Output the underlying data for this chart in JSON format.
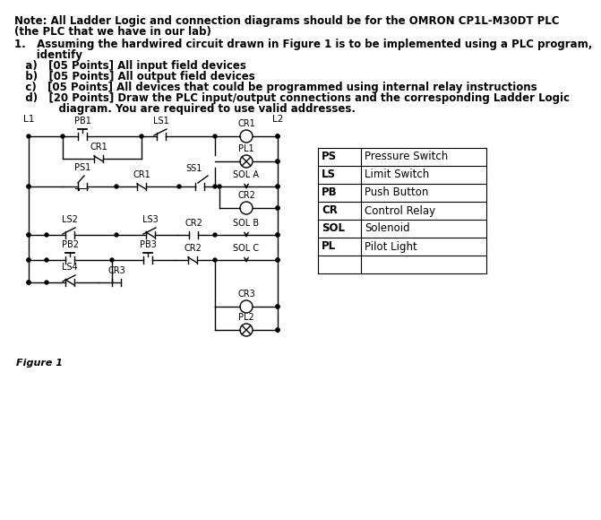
{
  "title_note_1": "Note: All Ladder Logic and connection diagrams should be for the OMRON CP1L-M30DT PLC",
  "title_note_2": "(the PLC that we have in our lab)",
  "q_line1": "1.   Assuming the hardwired circuit drawn in Figure 1 is to be implemented using a PLC program,",
  "q_line2": "      identify",
  "sub_a": "   a)   [05 Points] All input field devices",
  "sub_b": "   b)   [05 Points] All output field devices",
  "sub_c": "   c)   [05 Points] All devices that could be programmed using internal relay instructions",
  "sub_d1": "   d)   [20 Points] Draw the PLC input/output connections and the corresponding Ladder Logic",
  "sub_d2": "            diagram. You are required to use valid addresses.",
  "figure_label": "Figure 1",
  "table_data": [
    [
      "PS",
      "Pressure Switch"
    ],
    [
      "LS",
      "Limit Switch"
    ],
    [
      "PB",
      "Push Button"
    ],
    [
      "CR",
      "Control Relay"
    ],
    [
      "SOL",
      "Solenoid"
    ],
    [
      "PL",
      "Pilot Light"
    ]
  ],
  "bg_color": "#ffffff",
  "text_color": "#000000"
}
